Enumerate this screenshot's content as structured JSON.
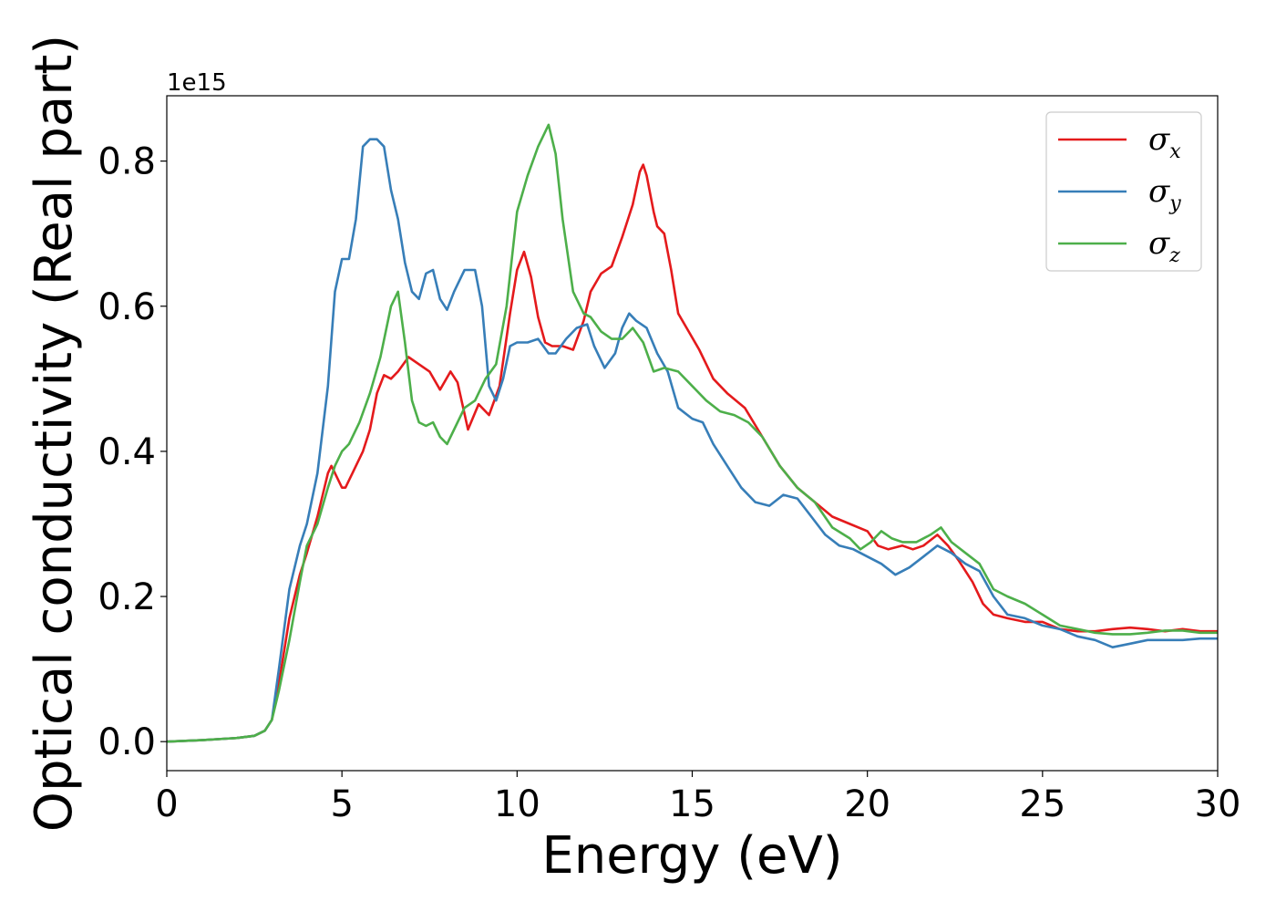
{
  "chart_data": {
    "type": "line",
    "title": "",
    "xlabel": "Energy (eV)",
    "ylabel": "Optical conductivity (Real part)",
    "y_offset_label": "1e15",
    "y_scale_factor": 1000000000000000.0,
    "xlim": [
      0,
      30
    ],
    "ylim": [
      -0.04,
      0.89
    ],
    "x_ticks": [
      0,
      5,
      10,
      15,
      20,
      25,
      30
    ],
    "x_tick_labels": [
      "0",
      "5",
      "10",
      "15",
      "20",
      "25",
      "30"
    ],
    "y_ticks": [
      0.0,
      0.2,
      0.4,
      0.6,
      0.8
    ],
    "y_tick_labels": [
      "0.0",
      "0.2",
      "0.4",
      "0.6",
      "0.8"
    ],
    "grid": false,
    "legend_position": "top-right",
    "series": [
      {
        "name": "σ",
        "subscript": "x",
        "color": "#e41a1c",
        "x": [
          0,
          1,
          2,
          2.5,
          2.8,
          3.0,
          3.2,
          3.5,
          3.8,
          4.0,
          4.3,
          4.6,
          4.7,
          4.8,
          5.0,
          5.1,
          5.3,
          5.6,
          5.8,
          6.0,
          6.2,
          6.4,
          6.6,
          6.9,
          7.2,
          7.5,
          7.8,
          8.1,
          8.3,
          8.6,
          8.9,
          9.2,
          9.5,
          9.8,
          10.0,
          10.2,
          10.4,
          10.6,
          10.8,
          11.0,
          11.3,
          11.6,
          11.9,
          12.1,
          12.4,
          12.7,
          13.0,
          13.3,
          13.5,
          13.6,
          13.7,
          13.9,
          14.0,
          14.2,
          14.4,
          14.6,
          14.9,
          15.2,
          15.6,
          16.0,
          16.5,
          17.0,
          17.5,
          18.0,
          18.5,
          19.0,
          19.5,
          20.0,
          20.3,
          20.6,
          21.0,
          21.3,
          21.6,
          22.0,
          22.3,
          22.6,
          23.0,
          23.3,
          23.6,
          24.0,
          24.5,
          25.0,
          25.5,
          26.0,
          26.5,
          27.0,
          27.5,
          28.0,
          28.5,
          29.0,
          29.5,
          30.0
        ],
        "values": [
          0.0,
          0.002,
          0.005,
          0.008,
          0.015,
          0.03,
          0.08,
          0.17,
          0.23,
          0.26,
          0.31,
          0.37,
          0.38,
          0.37,
          0.35,
          0.35,
          0.37,
          0.4,
          0.43,
          0.48,
          0.505,
          0.5,
          0.51,
          0.53,
          0.52,
          0.51,
          0.485,
          0.51,
          0.495,
          0.43,
          0.465,
          0.45,
          0.49,
          0.59,
          0.65,
          0.675,
          0.64,
          0.585,
          0.55,
          0.545,
          0.545,
          0.54,
          0.58,
          0.62,
          0.645,
          0.655,
          0.695,
          0.74,
          0.785,
          0.795,
          0.78,
          0.73,
          0.71,
          0.7,
          0.65,
          0.59,
          0.565,
          0.54,
          0.5,
          0.48,
          0.46,
          0.42,
          0.38,
          0.35,
          0.33,
          0.31,
          0.3,
          0.29,
          0.27,
          0.265,
          0.27,
          0.265,
          0.27,
          0.285,
          0.27,
          0.25,
          0.22,
          0.19,
          0.175,
          0.17,
          0.165,
          0.165,
          0.155,
          0.152,
          0.152,
          0.155,
          0.157,
          0.155,
          0.152,
          0.155,
          0.152,
          0.152
        ]
      },
      {
        "name": "σ",
        "subscript": "y",
        "color": "#377eb8",
        "x": [
          0,
          1,
          2,
          2.5,
          2.8,
          3.0,
          3.2,
          3.5,
          3.8,
          4.0,
          4.3,
          4.6,
          4.8,
          5.0,
          5.2,
          5.4,
          5.6,
          5.8,
          6.0,
          6.2,
          6.4,
          6.6,
          6.8,
          7.0,
          7.2,
          7.4,
          7.6,
          7.8,
          8.0,
          8.2,
          8.5,
          8.8,
          9.0,
          9.2,
          9.4,
          9.6,
          9.8,
          10.0,
          10.3,
          10.6,
          10.9,
          11.1,
          11.4,
          11.7,
          12.0,
          12.2,
          12.5,
          12.8,
          13.0,
          13.2,
          13.4,
          13.7,
          14.0,
          14.3,
          14.6,
          15.0,
          15.3,
          15.6,
          16.0,
          16.4,
          16.8,
          17.2,
          17.6,
          18.0,
          18.4,
          18.8,
          19.2,
          19.6,
          20.0,
          20.4,
          20.8,
          21.2,
          21.6,
          22.0,
          22.4,
          22.8,
          23.2,
          23.6,
          24.0,
          24.5,
          25.0,
          25.5,
          26.0,
          26.5,
          27.0,
          27.5,
          28.0,
          28.5,
          29.0,
          29.5,
          30.0
        ],
        "values": [
          0.0,
          0.002,
          0.005,
          0.008,
          0.015,
          0.03,
          0.1,
          0.21,
          0.27,
          0.3,
          0.37,
          0.49,
          0.62,
          0.665,
          0.665,
          0.72,
          0.82,
          0.83,
          0.83,
          0.82,
          0.76,
          0.72,
          0.66,
          0.62,
          0.61,
          0.645,
          0.65,
          0.61,
          0.595,
          0.62,
          0.65,
          0.65,
          0.6,
          0.49,
          0.47,
          0.5,
          0.545,
          0.55,
          0.55,
          0.555,
          0.535,
          0.535,
          0.555,
          0.57,
          0.575,
          0.545,
          0.515,
          0.535,
          0.57,
          0.59,
          0.58,
          0.57,
          0.535,
          0.51,
          0.46,
          0.445,
          0.44,
          0.41,
          0.38,
          0.35,
          0.33,
          0.325,
          0.34,
          0.335,
          0.31,
          0.285,
          0.27,
          0.265,
          0.255,
          0.245,
          0.23,
          0.24,
          0.255,
          0.27,
          0.26,
          0.245,
          0.235,
          0.2,
          0.175,
          0.17,
          0.16,
          0.155,
          0.145,
          0.14,
          0.13,
          0.135,
          0.14,
          0.14,
          0.14,
          0.142,
          0.142
        ]
      },
      {
        "name": "σ",
        "subscript": "z",
        "color": "#4daf4a",
        "x": [
          0,
          1,
          2,
          2.5,
          2.8,
          3.0,
          3.2,
          3.5,
          3.8,
          4.0,
          4.3,
          4.6,
          4.8,
          5.0,
          5.2,
          5.5,
          5.8,
          6.1,
          6.4,
          6.6,
          6.8,
          7.0,
          7.2,
          7.4,
          7.6,
          7.8,
          8.0,
          8.2,
          8.5,
          8.8,
          9.1,
          9.4,
          9.7,
          10.0,
          10.3,
          10.6,
          10.9,
          11.1,
          11.3,
          11.6,
          11.9,
          12.1,
          12.4,
          12.7,
          13.0,
          13.3,
          13.6,
          13.9,
          14.2,
          14.6,
          15.0,
          15.4,
          15.8,
          16.2,
          16.6,
          17.0,
          17.5,
          18.0,
          18.5,
          19.0,
          19.5,
          19.8,
          20.1,
          20.4,
          20.7,
          21.0,
          21.4,
          21.8,
          22.1,
          22.4,
          22.8,
          23.2,
          23.6,
          24.0,
          24.5,
          25.0,
          25.5,
          26.0,
          26.5,
          27.0,
          27.5,
          28.0,
          28.5,
          29.0,
          29.5,
          30.0
        ],
        "values": [
          0.0,
          0.002,
          0.005,
          0.008,
          0.015,
          0.03,
          0.07,
          0.14,
          0.22,
          0.27,
          0.3,
          0.35,
          0.38,
          0.4,
          0.41,
          0.44,
          0.48,
          0.53,
          0.6,
          0.62,
          0.55,
          0.47,
          0.44,
          0.435,
          0.44,
          0.42,
          0.41,
          0.43,
          0.46,
          0.47,
          0.5,
          0.52,
          0.6,
          0.73,
          0.78,
          0.82,
          0.85,
          0.81,
          0.72,
          0.62,
          0.59,
          0.585,
          0.565,
          0.555,
          0.555,
          0.57,
          0.55,
          0.51,
          0.515,
          0.51,
          0.49,
          0.47,
          0.455,
          0.45,
          0.44,
          0.42,
          0.38,
          0.35,
          0.33,
          0.295,
          0.28,
          0.265,
          0.275,
          0.29,
          0.28,
          0.275,
          0.275,
          0.285,
          0.295,
          0.275,
          0.26,
          0.245,
          0.21,
          0.2,
          0.19,
          0.175,
          0.16,
          0.155,
          0.15,
          0.148,
          0.148,
          0.15,
          0.153,
          0.153,
          0.15,
          0.15
        ]
      }
    ]
  }
}
